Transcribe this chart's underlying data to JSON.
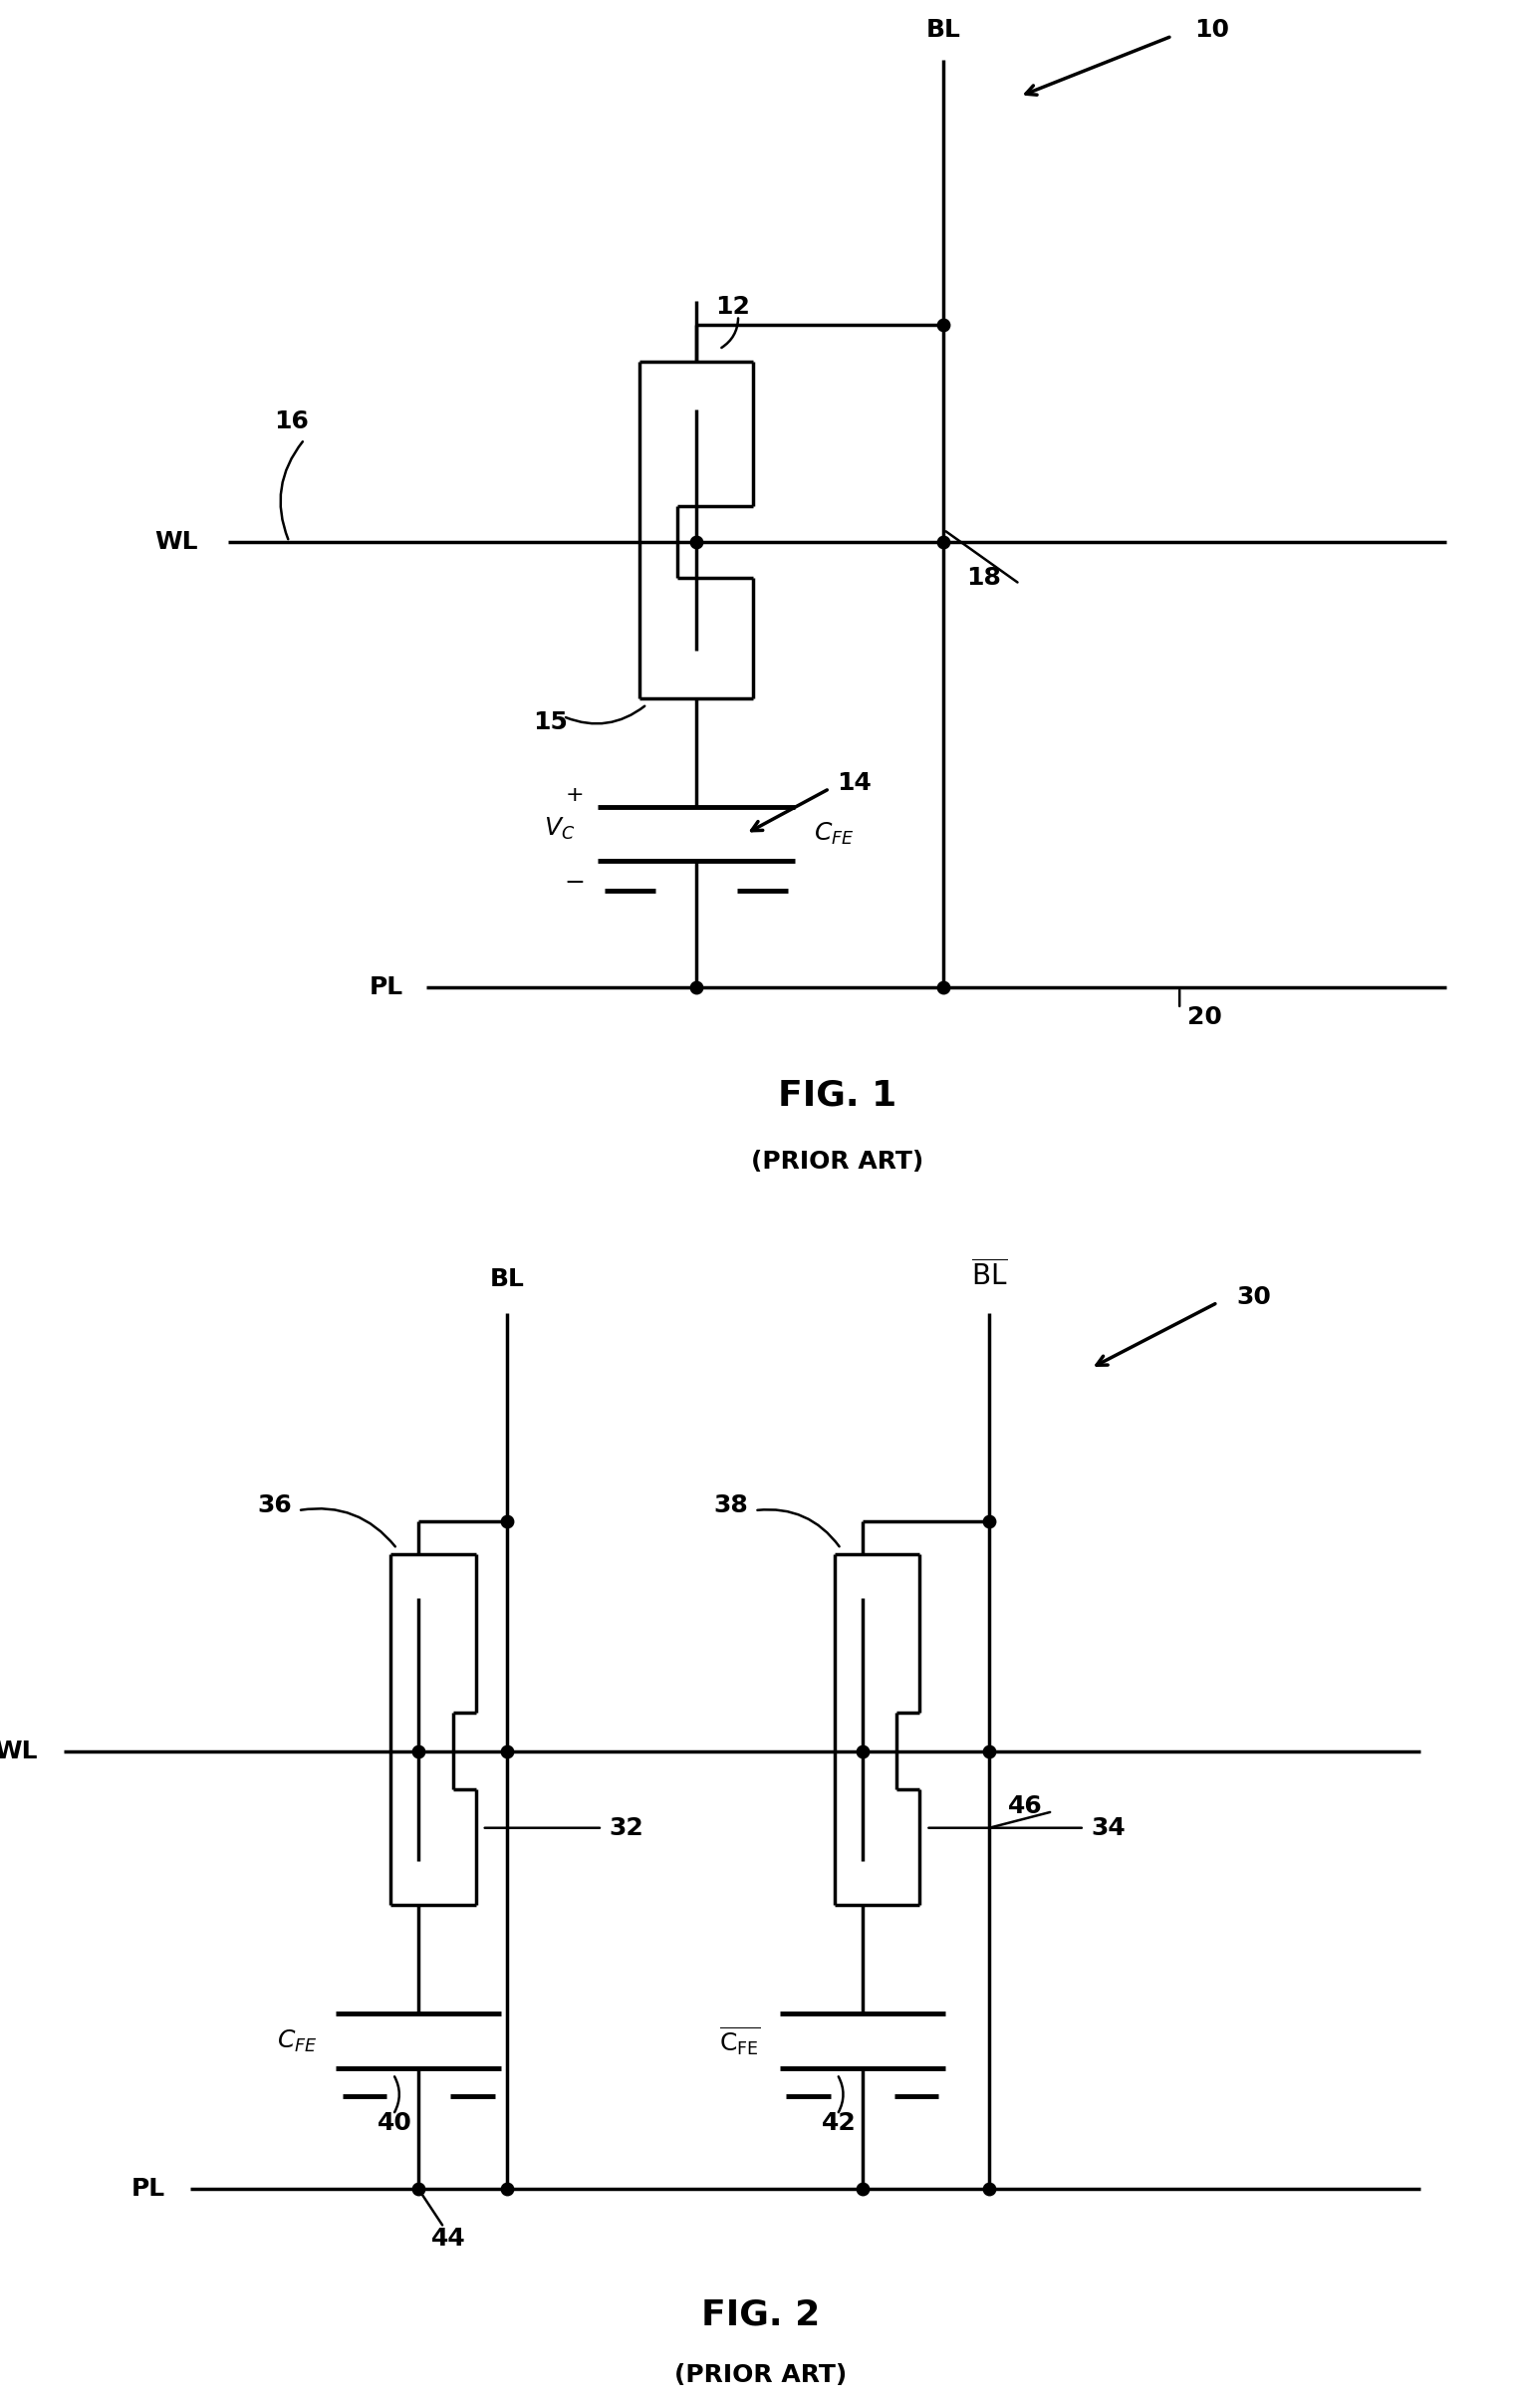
{
  "fig1": {
    "title": "FIG. 1",
    "subtitle": "(PRIOR ART)"
  },
  "fig2": {
    "title": "FIG. 2",
    "subtitle": "(PRIOR ART)"
  },
  "lw": 2.5,
  "lw_cap": 3.5,
  "dot_size": 9,
  "bg_color": "#ffffff",
  "line_color": "#000000",
  "font_size_label": 18,
  "font_size_num": 18,
  "font_size_title": 26,
  "font_size_subtitle": 18
}
